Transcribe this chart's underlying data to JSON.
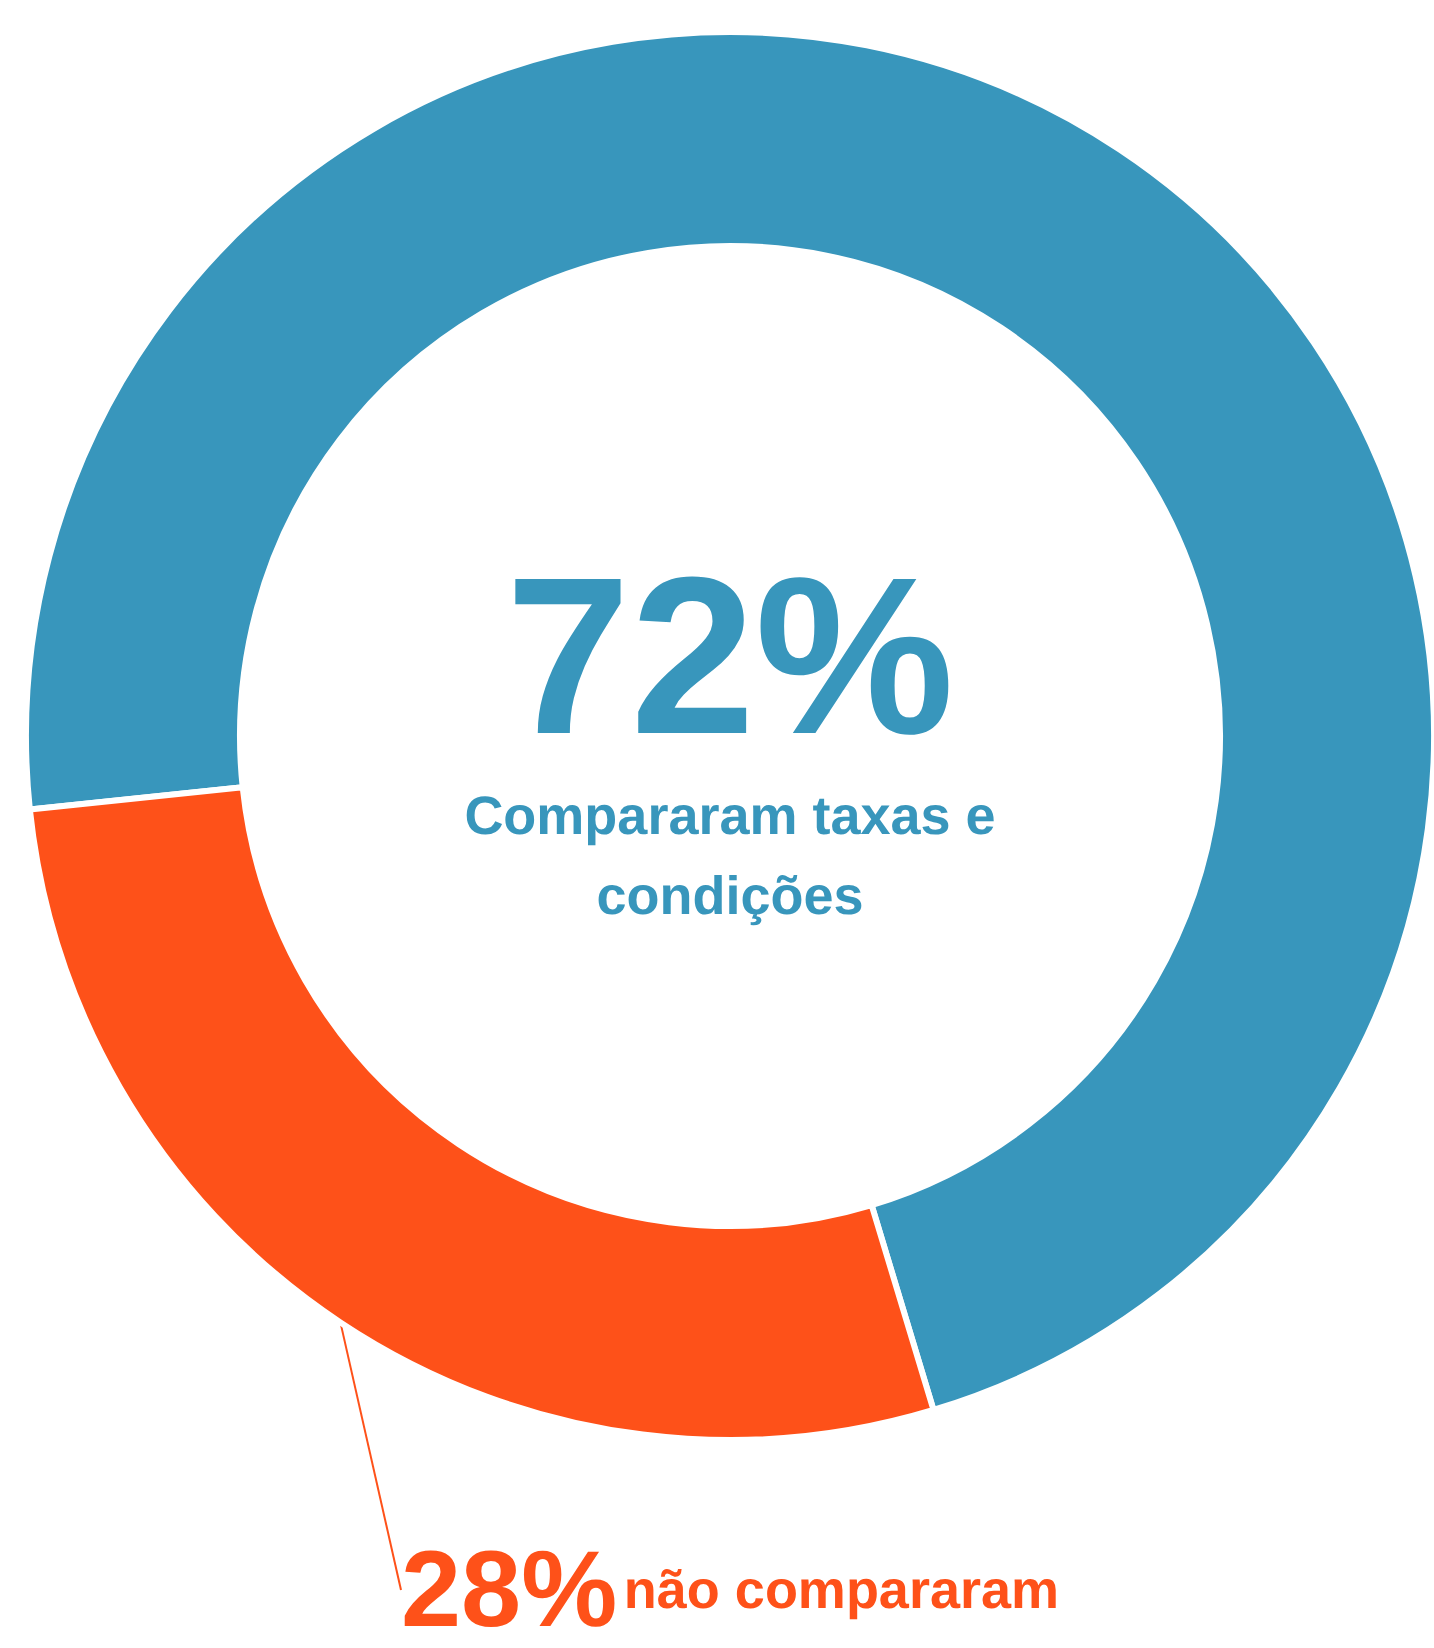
{
  "chart_data": {
    "type": "donut",
    "categories": [
      "Compararam taxas e\ncondições",
      "não compararam"
    ],
    "values": [
      72,
      28
    ],
    "value_labels": [
      "72%",
      "28%"
    ],
    "colors": [
      "#3896bc",
      "#fe5119"
    ],
    "legend": false
  }
}
